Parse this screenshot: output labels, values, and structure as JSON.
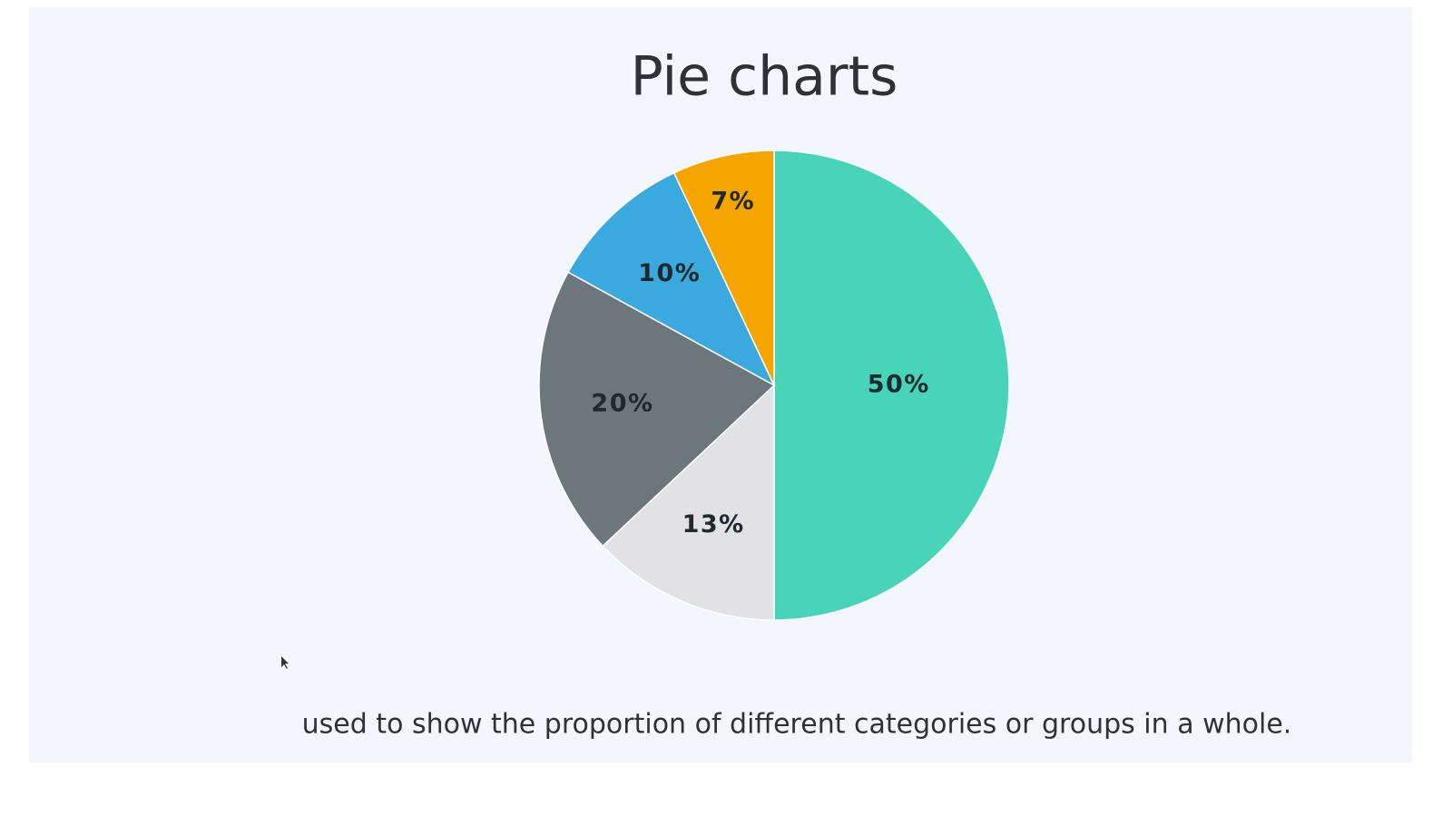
{
  "chart_data": {
    "type": "pie",
    "title": "Pie charts",
    "caption": "used to show the proportion of different categories or groups in a whole.",
    "values": [
      50,
      13,
      20,
      10,
      7
    ],
    "value_labels": [
      "50%",
      "13%",
      "20%",
      "10%",
      "7%"
    ],
    "colors": [
      "#48d4b9",
      "#e2e2e4",
      "#6c777c",
      "#3aa9dd",
      "#f5a400"
    ],
    "start_angle": 0,
    "direction": "clockwise"
  }
}
